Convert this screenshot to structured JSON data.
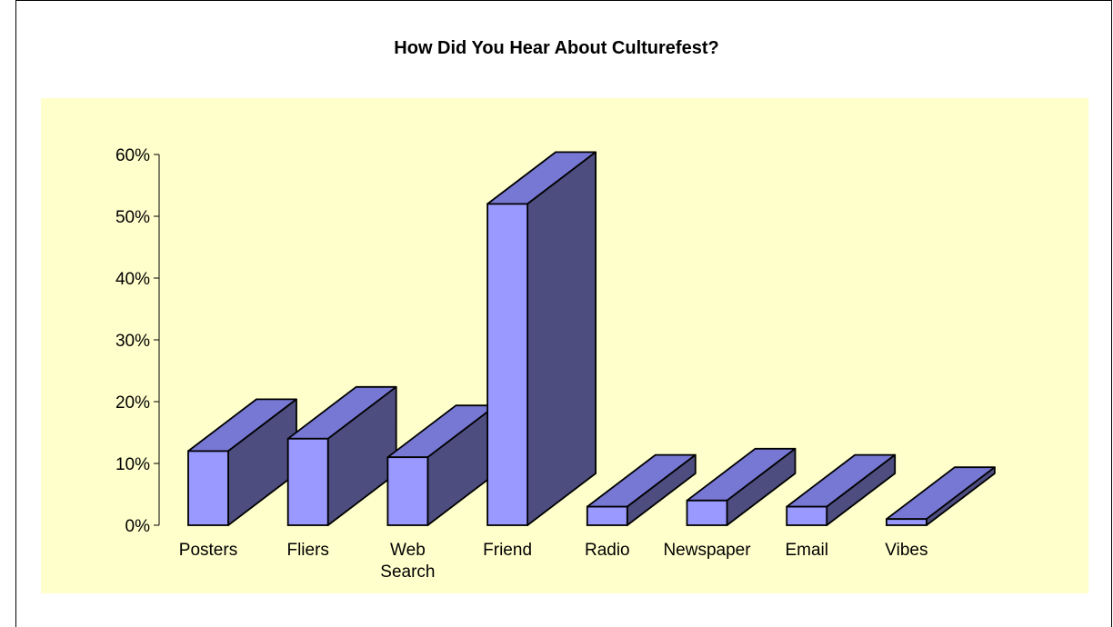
{
  "chart_data": {
    "type": "bar",
    "title": "How Did You Hear About Culturefest?",
    "categories": [
      "Posters",
      "Fliers",
      "Web Search",
      "Friend",
      "Radio",
      "Newspaper",
      "Email",
      "Vibes"
    ],
    "values": [
      12,
      14,
      11,
      52,
      3,
      4,
      3,
      1
    ],
    "ylim": [
      0,
      60
    ],
    "yticks": [
      "0%",
      "10%",
      "20%",
      "30%",
      "40%",
      "50%",
      "60%"
    ],
    "xlabel": "",
    "ylabel": "",
    "grid": false,
    "legend": "none",
    "three_d": true
  },
  "colors": {
    "front": "#9999ff",
    "top": "#7777d4",
    "side": "#4d4d80",
    "plot_background": "#ffffcc"
  }
}
